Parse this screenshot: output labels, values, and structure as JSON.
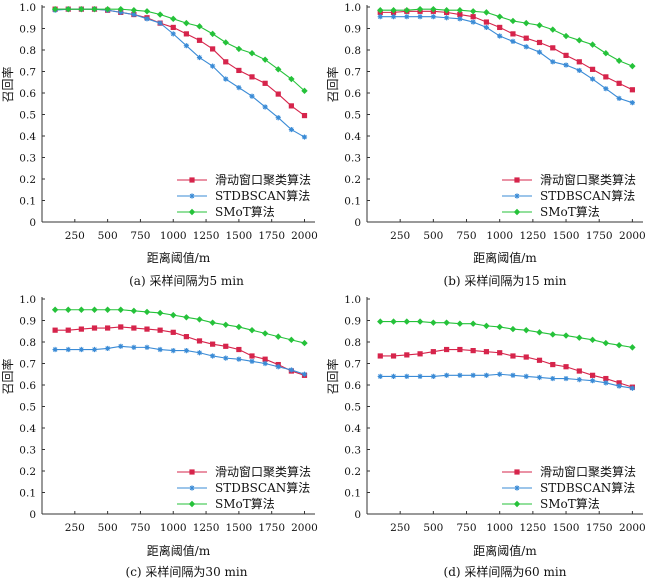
{
  "colors": {
    "red": "#d6244b",
    "blue": "#3a8bd6",
    "green": "#25c23a",
    "axis": "#333333"
  },
  "chart_data": [
    {
      "type": "line",
      "caption": "(a) 采样间隔为5 min",
      "xlabel": "距离阈值/m",
      "ylabel": "召回率",
      "xlim": [
        0,
        2080
      ],
      "ylim": [
        0,
        1.0
      ],
      "xticks": [
        "250",
        "500",
        "750",
        "1000",
        "1250",
        "1500",
        "1750",
        "2000"
      ],
      "yticks": [
        "0",
        "0.1",
        "0.2",
        "0.3",
        "0.4",
        "0.5",
        "0.6",
        "0.7",
        "0.8",
        "0.9",
        "1.0"
      ],
      "legend_position": "lower-right",
      "x": [
        100,
        200,
        300,
        400,
        500,
        600,
        700,
        800,
        900,
        1000,
        1100,
        1200,
        1300,
        1400,
        1500,
        1600,
        1700,
        1800,
        1900,
        2000
      ],
      "series": [
        {
          "name": "滑动窗口聚类算法",
          "color": "red",
          "marker": "square",
          "values": [
            0.99,
            0.99,
            0.99,
            0.99,
            0.985,
            0.975,
            0.965,
            0.95,
            0.925,
            0.905,
            0.875,
            0.845,
            0.805,
            0.745,
            0.705,
            0.675,
            0.645,
            0.595,
            0.54,
            0.495
          ]
        },
        {
          "name": "STDBSCAN算法",
          "color": "blue",
          "marker": "star",
          "values": [
            0.985,
            0.99,
            0.99,
            0.99,
            0.985,
            0.975,
            0.965,
            0.945,
            0.925,
            0.875,
            0.82,
            0.765,
            0.725,
            0.665,
            0.625,
            0.585,
            0.535,
            0.485,
            0.43,
            0.395
          ]
        },
        {
          "name": "SMoT算法",
          "color": "green",
          "marker": "diamond",
          "values": [
            0.99,
            0.99,
            0.99,
            0.99,
            0.99,
            0.99,
            0.985,
            0.98,
            0.965,
            0.945,
            0.925,
            0.91,
            0.875,
            0.835,
            0.805,
            0.785,
            0.755,
            0.71,
            0.665,
            0.61
          ]
        }
      ]
    },
    {
      "type": "line",
      "caption": "(b) 采样间隔为15 min",
      "xlabel": "距离阈值/m",
      "ylabel": "召回率",
      "xlim": [
        0,
        2080
      ],
      "ylim": [
        0,
        1.0
      ],
      "xticks": [
        "250",
        "500",
        "750",
        "1000",
        "1250",
        "1500",
        "1750",
        "2000"
      ],
      "yticks": [
        "0",
        "0.1",
        "0.2",
        "0.3",
        "0.4",
        "0.5",
        "0.6",
        "0.7",
        "0.8",
        "0.9",
        "1.0"
      ],
      "legend_position": "lower-right",
      "x": [
        100,
        200,
        300,
        400,
        500,
        600,
        700,
        800,
        900,
        1000,
        1100,
        1200,
        1300,
        1400,
        1500,
        1600,
        1700,
        1800,
        1900,
        2000
      ],
      "series": [
        {
          "name": "滑动窗口聚类算法",
          "color": "red",
          "marker": "square",
          "values": [
            0.975,
            0.975,
            0.98,
            0.98,
            0.98,
            0.975,
            0.965,
            0.955,
            0.93,
            0.905,
            0.875,
            0.855,
            0.835,
            0.81,
            0.775,
            0.745,
            0.71,
            0.675,
            0.645,
            0.615
          ]
        },
        {
          "name": "STDBSCAN算法",
          "color": "blue",
          "marker": "star",
          "values": [
            0.955,
            0.955,
            0.955,
            0.955,
            0.955,
            0.95,
            0.945,
            0.93,
            0.905,
            0.865,
            0.84,
            0.815,
            0.79,
            0.745,
            0.73,
            0.705,
            0.665,
            0.62,
            0.575,
            0.555
          ]
        },
        {
          "name": "SMoT算法",
          "color": "green",
          "marker": "diamond",
          "values": [
            0.985,
            0.985,
            0.985,
            0.99,
            0.99,
            0.985,
            0.985,
            0.98,
            0.975,
            0.955,
            0.935,
            0.925,
            0.915,
            0.895,
            0.865,
            0.845,
            0.825,
            0.785,
            0.75,
            0.725
          ]
        }
      ]
    },
    {
      "type": "line",
      "caption": "(c) 采样间隔为30 min",
      "xlabel": "距离阈值/m",
      "ylabel": "召回率",
      "xlim": [
        0,
        2080
      ],
      "ylim": [
        0,
        1.0
      ],
      "xticks": [
        "250",
        "500",
        "750",
        "1000",
        "1250",
        "1500",
        "1750",
        "2000"
      ],
      "yticks": [
        "0",
        "0.1",
        "0.2",
        "0.3",
        "0.4",
        "0.5",
        "0.6",
        "0.7",
        "0.8",
        "0.9",
        "1.0"
      ],
      "legend_position": "lower-right",
      "x": [
        100,
        200,
        300,
        400,
        500,
        600,
        700,
        800,
        900,
        1000,
        1100,
        1200,
        1300,
        1400,
        1500,
        1600,
        1700,
        1800,
        1900,
        2000
      ],
      "series": [
        {
          "name": "滑动窗口聚类算法",
          "color": "red",
          "marker": "square",
          "values": [
            0.855,
            0.855,
            0.86,
            0.865,
            0.865,
            0.87,
            0.865,
            0.86,
            0.855,
            0.845,
            0.825,
            0.805,
            0.79,
            0.78,
            0.765,
            0.735,
            0.72,
            0.695,
            0.665,
            0.645
          ]
        },
        {
          "name": "STDBSCAN算法",
          "color": "blue",
          "marker": "star",
          "values": [
            0.765,
            0.765,
            0.765,
            0.765,
            0.77,
            0.78,
            0.775,
            0.775,
            0.765,
            0.76,
            0.76,
            0.75,
            0.735,
            0.725,
            0.72,
            0.71,
            0.7,
            0.685,
            0.67,
            0.65
          ]
        },
        {
          "name": "SMoT算法",
          "color": "green",
          "marker": "diamond",
          "values": [
            0.95,
            0.95,
            0.95,
            0.95,
            0.95,
            0.95,
            0.945,
            0.94,
            0.935,
            0.925,
            0.915,
            0.905,
            0.89,
            0.88,
            0.87,
            0.855,
            0.84,
            0.825,
            0.81,
            0.795
          ]
        }
      ]
    },
    {
      "type": "line",
      "caption": "(d) 采样间隔为60 min",
      "xlabel": "距离阈值/m",
      "ylabel": "召回率",
      "xlim": [
        0,
        2080
      ],
      "ylim": [
        0,
        1.0
      ],
      "xticks": [
        "250",
        "500",
        "750",
        "1000",
        "1250",
        "1500",
        "1750",
        "2000"
      ],
      "yticks": [
        "0",
        "0.1",
        "0.2",
        "0.3",
        "0.4",
        "0.5",
        "0.6",
        "0.7",
        "0.8",
        "0.9",
        "1.0"
      ],
      "legend_position": "lower-right",
      "x": [
        100,
        200,
        300,
        400,
        500,
        600,
        700,
        800,
        900,
        1000,
        1100,
        1200,
        1300,
        1400,
        1500,
        1600,
        1700,
        1800,
        1900,
        2000
      ],
      "series": [
        {
          "name": "滑动窗口聚类算法",
          "color": "red",
          "marker": "square",
          "values": [
            0.735,
            0.735,
            0.74,
            0.745,
            0.755,
            0.765,
            0.765,
            0.76,
            0.755,
            0.75,
            0.735,
            0.73,
            0.715,
            0.695,
            0.685,
            0.665,
            0.645,
            0.63,
            0.61,
            0.59
          ]
        },
        {
          "name": "STDBSCAN算法",
          "color": "blue",
          "marker": "star",
          "values": [
            0.64,
            0.64,
            0.64,
            0.64,
            0.64,
            0.645,
            0.645,
            0.645,
            0.645,
            0.65,
            0.645,
            0.64,
            0.635,
            0.63,
            0.63,
            0.625,
            0.62,
            0.61,
            0.595,
            0.585
          ]
        },
        {
          "name": "SMoT算法",
          "color": "green",
          "marker": "diamond",
          "values": [
            0.895,
            0.895,
            0.895,
            0.895,
            0.89,
            0.89,
            0.885,
            0.885,
            0.875,
            0.87,
            0.86,
            0.855,
            0.845,
            0.835,
            0.83,
            0.82,
            0.81,
            0.795,
            0.785,
            0.775
          ]
        }
      ]
    }
  ]
}
